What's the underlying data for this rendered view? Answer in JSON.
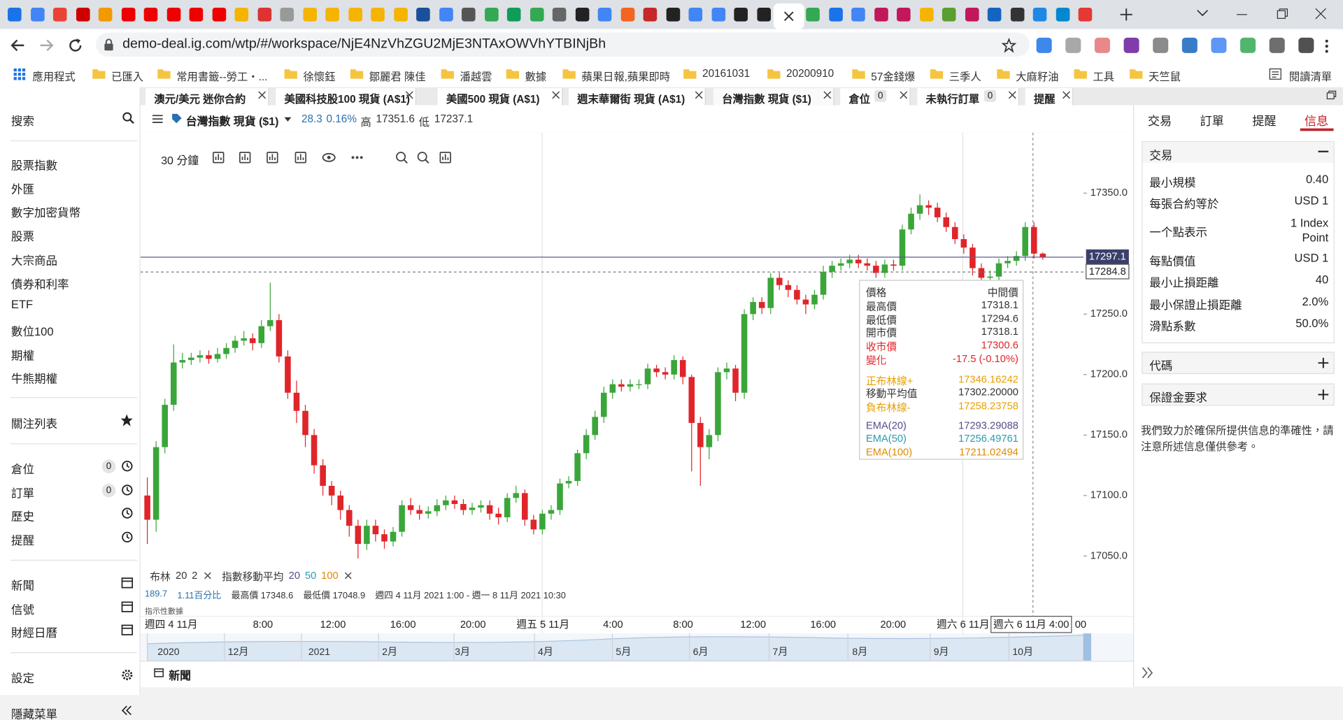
{
  "browser": {
    "url": "demo-deal.ig.com/wtp/#/workspace/NjE4NzVhZGU2MjE3NTAxOWVhYTBINjBh",
    "bookmarks": [
      "應用程式",
      "已匯入",
      "常用書籤--勞工・...",
      "徐懷鈺",
      "鄒麗君 陳佳",
      "潘越雲",
      "數據",
      "蘋果日報,蘋果即時",
      "20161031",
      "20200910",
      "57金錢爆",
      "三季人",
      "大麻籽油",
      "工具",
      "天竺鼠"
    ],
    "reading_list": "閱讀清單"
  },
  "sidebar": {
    "search": "搜索",
    "markets": [
      "股票指數",
      "外匯",
      "數字加密貨幣",
      "股票",
      "大宗商品",
      "債券和利率",
      "ETF",
      "數位100",
      "期權",
      "牛熊期權"
    ],
    "watchlist": "關注列表",
    "account": [
      {
        "label": "倉位",
        "count": 0
      },
      {
        "label": "訂單",
        "count": 0
      },
      {
        "label": "歷史"
      },
      {
        "label": "提醒"
      }
    ],
    "tools": [
      "新聞",
      "信號",
      "財經日曆"
    ],
    "settings": "設定",
    "hide_menu": "隱藏菜單"
  },
  "workspace_tabs": [
    {
      "label": "澳元/美元 迷你合約"
    },
    {
      "label": "美國科技股100 現貨 (A$1)"
    },
    {
      "label": "美國500 現貨 (A$1)"
    },
    {
      "label": "週末華爾街 現貨 (A$1)"
    },
    {
      "label": "台灣指數 現貨 ($1)",
      "active": true
    },
    {
      "label": "倉位",
      "count": 0
    },
    {
      "label": "未執行訂單",
      "count": 0
    },
    {
      "label": "提醒"
    }
  ],
  "instrument": {
    "name": "台灣指數 現貨 ($1)",
    "change": "28.3",
    "change_pct": "0.16%",
    "high_label": "高",
    "high": "17351.6",
    "low_label": "低",
    "low": "17237.1"
  },
  "toolbar": {
    "interval": "30 分鐘"
  },
  "indicators": {
    "bollinger": "布林",
    "bollinger_params": [
      "20",
      "2"
    ],
    "ema": "指數移動平均",
    "ema_params": [
      {
        "text": "20",
        "color": "#5a4b8a"
      },
      {
        "text": "50",
        "color": "#2a9bb0"
      },
      {
        "text": "100",
        "color": "#e08a00"
      }
    ]
  },
  "stats": [
    {
      "text": "189.7",
      "color": "#2a6fb0"
    },
    {
      "text": "1.11百分比",
      "color": "#2a6fb0"
    },
    {
      "text": "最高價 17348.6",
      "color": "#333333"
    },
    {
      "text": "最低價 17048.9",
      "color": "#333333"
    },
    {
      "text": "週四 4 11月 2021 1:00 - 週一 8 11月 2021 10:30",
      "color": "#333333"
    }
  ],
  "indicative": "指示性數據",
  "chart_data": {
    "type": "candlestick",
    "up_color": "#3aa63a",
    "down_color": "#e0252a",
    "open": [
      17100,
      17080,
      17140,
      17175,
      17210,
      17212,
      17214,
      17216,
      17213,
      17217,
      17222,
      17228,
      17230,
      17226,
      17240,
      17245,
      17215,
      17185,
      17170,
      17150,
      17125,
      17108,
      17100,
      17088,
      17075,
      17060,
      17075,
      17068,
      17062,
      17070,
      17092,
      17088,
      17085,
      17087,
      17092,
      17096,
      17093,
      17088,
      17090,
      17092,
      17085,
      17082,
      17098,
      17102,
      17080,
      17072,
      17085,
      17088,
      17110,
      17112,
      17135,
      17150,
      17165,
      17185,
      17192,
      17190,
      17192,
      17192,
      17205,
      17202,
      17200,
      17212,
      17198,
      17160,
      17140,
      17150,
      17202,
      17205,
      17185,
      17250,
      17260,
      17255,
      17280,
      17274,
      17270,
      17262,
      17258,
      17266,
      17285,
      17290,
      17292,
      17295,
      17292,
      17290,
      17284,
      17291,
      17290,
      17320,
      17333,
      17340,
      17338,
      17330,
      17322,
      17312,
      17305,
      17288,
      17280,
      17281,
      17292,
      17294,
      17298,
      17322,
      17300
    ],
    "high": [
      17115,
      17145,
      17180,
      17225,
      17218,
      17218,
      17220,
      17220,
      17222,
      17226,
      17232,
      17236,
      17234,
      17245,
      17276,
      17250,
      17220,
      17195,
      17175,
      17155,
      17130,
      17112,
      17104,
      17092,
      17080,
      17080,
      17080,
      17072,
      17074,
      17096,
      17098,
      17092,
      17091,
      17097,
      17100,
      17100,
      17097,
      17094,
      17096,
      17096,
      17090,
      17102,
      17108,
      17105,
      17084,
      17088,
      17092,
      17114,
      17116,
      17138,
      17155,
      17170,
      17190,
      17196,
      17196,
      17196,
      17196,
      17209,
      17208,
      17206,
      17216,
      17215,
      17200,
      17165,
      17155,
      17206,
      17210,
      17208,
      17254,
      17264,
      17264,
      17284,
      17284,
      17278,
      17274,
      17266,
      17270,
      17290,
      17294,
      17296,
      17299,
      17299,
      17296,
      17294,
      17295,
      17295,
      17324,
      17338,
      17349,
      17344,
      17342,
      17334,
      17326,
      17316,
      17308,
      17292,
      17286,
      17296,
      17298,
      17302,
      17326,
      17326,
      17301
    ],
    "low": [
      17060,
      17070,
      17135,
      17170,
      17205,
      17208,
      17210,
      17209,
      17210,
      17213,
      17218,
      17224,
      17220,
      17222,
      17236,
      17210,
      17180,
      17160,
      17140,
      17118,
      17100,
      17092,
      17080,
      17066,
      17048,
      17055,
      17062,
      17056,
      17058,
      17066,
      17084,
      17080,
      17081,
      17083,
      17088,
      17089,
      17084,
      17084,
      17086,
      17080,
      17076,
      17078,
      17094,
      17075,
      17068,
      17068,
      17080,
      17084,
      17106,
      17108,
      17130,
      17146,
      17160,
      17180,
      17186,
      17186,
      17188,
      17188,
      17198,
      17196,
      17196,
      17192,
      17120,
      17108,
      17130,
      17145,
      17196,
      17178,
      17180,
      17245,
      17250,
      17250,
      17270,
      17264,
      17258,
      17250,
      17254,
      17262,
      17280,
      17286,
      17288,
      17288,
      17286,
      17280,
      17280,
      17286,
      17286,
      17316,
      17328,
      17332,
      17326,
      17318,
      17308,
      17300,
      17282,
      17276,
      17276,
      17277,
      17288,
      17290,
      17294,
      17296,
      17295
    ],
    "close": [
      17080,
      17140,
      17175,
      17210,
      17212,
      17214,
      17216,
      17213,
      17217,
      17222,
      17228,
      17230,
      17226,
      17240,
      17245,
      17215,
      17185,
      17170,
      17150,
      17125,
      17108,
      17100,
      17088,
      17075,
      17060,
      17075,
      17068,
      17062,
      17070,
      17092,
      17088,
      17085,
      17087,
      17092,
      17096,
      17093,
      17088,
      17090,
      17092,
      17085,
      17082,
      17098,
      17102,
      17080,
      17072,
      17085,
      17088,
      17110,
      17112,
      17135,
      17150,
      17165,
      17185,
      17192,
      17190,
      17192,
      17192,
      17205,
      17202,
      17200,
      17212,
      17198,
      17160,
      17140,
      17150,
      17202,
      17205,
      17185,
      17250,
      17260,
      17255,
      17280,
      17274,
      17270,
      17262,
      17258,
      17266,
      17285,
      17290,
      17292,
      17295,
      17292,
      17290,
      17284,
      17291,
      17290,
      17320,
      17333,
      17340,
      17338,
      17330,
      17322,
      17312,
      17305,
      17288,
      17280,
      17281,
      17292,
      17294,
      17298,
      17322,
      17300,
      17297.1
    ],
    "ylim": [
      16986,
      17400
    ],
    "yticks": [
      {
        "value": 17050,
        "label": "17050.0"
      },
      {
        "value": 17100,
        "label": "17100.0"
      },
      {
        "value": 17150,
        "label": "17150.0"
      },
      {
        "value": 17200,
        "label": "17200.0"
      },
      {
        "value": 17250,
        "label": "17250.0"
      },
      {
        "value": 17350,
        "label": "17350.0"
      }
    ],
    "last_price": 17297.1,
    "crosshair_price": 17284.8,
    "x_labels": [
      "週四 4 11月",
      "8:00",
      "12:00",
      "16:00",
      "20:00",
      "週五 5 11月",
      "4:00",
      "8:00",
      "12:00",
      "16:00",
      "20:00",
      "週六 6 11月"
    ],
    "crosshair_label": "週六 6 11月 4:00",
    "trailing_label": "00",
    "navigator_labels": [
      "2020",
      "12月",
      "2021",
      "2月",
      "3月",
      "4月",
      "5月",
      "6月",
      "7月",
      "8月",
      "9月",
      "10月"
    ]
  },
  "tooltip": {
    "title": "價格",
    "mode": "中間價",
    "groups": [
      [
        {
          "label": "最高價",
          "value": "17318.1",
          "color": "#333333"
        },
        {
          "label": "最低價",
          "value": "17294.6",
          "color": "#333333"
        },
        {
          "label": "開市價",
          "value": "17318.1",
          "color": "#333333"
        },
        {
          "label": "收市價",
          "value": "17300.6",
          "color": "#e0252a"
        },
        {
          "label": "變化",
          "value": "-17.5 (-0.10%)",
          "color": "#e0252a"
        }
      ],
      [
        {
          "label": "正布林線+",
          "value": "17346.16242",
          "color": "#e8a000"
        },
        {
          "label": "移動平均值",
          "value": "17302.20000",
          "color": "#333333"
        },
        {
          "label": "負布林線-",
          "value": "17258.23758",
          "color": "#e8a000"
        }
      ],
      [
        {
          "label": "EMA(20)",
          "value": "17293.29088",
          "color": "#5a4b8a"
        },
        {
          "label": "EMA(50)",
          "value": "17256.49761",
          "color": "#2a9bb0"
        },
        {
          "label": "EMA(100)",
          "value": "17211.02494",
          "color": "#e08a00"
        }
      ]
    ]
  },
  "news_bar": "新聞",
  "panel": {
    "tabs": [
      "交易",
      "訂單",
      "提醒",
      "信息"
    ],
    "active_tab": 3,
    "deal_title": "交易",
    "rows": [
      {
        "label": "最小規模",
        "value": "0.40"
      },
      {
        "label": "每張合約等於",
        "value": "USD 1"
      },
      {
        "label": "一个點表示",
        "value": "1 Index Point"
      },
      {
        "label": "每點價值",
        "value": "USD 1"
      },
      {
        "label": "最小止損距離",
        "value": "40"
      },
      {
        "label": "最小保證止損距離",
        "value": "2.0%"
      },
      {
        "label": "滑點系數",
        "value": "50.0%"
      }
    ],
    "sections": [
      "代碼",
      "保證金要求"
    ],
    "disclaimer": "我們致力於確保所提供信息的準確性，請注意所述信息僅供參考。"
  }
}
